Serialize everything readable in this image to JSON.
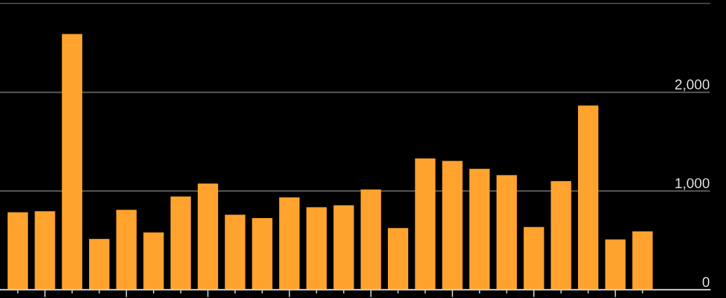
{
  "chart_data": {
    "type": "bar",
    "categories": [
      null,
      null,
      null,
      null,
      null,
      null,
      null,
      null,
      null,
      null,
      null,
      null,
      null,
      null,
      null,
      null,
      null,
      null,
      null,
      null,
      null,
      null,
      null,
      null
    ],
    "values": [
      785,
      795,
      2590,
      515,
      810,
      580,
      945,
      1075,
      760,
      725,
      935,
      835,
      855,
      1015,
      625,
      1330,
      1305,
      1225,
      1160,
      635,
      1100,
      1865,
      510,
      590
    ],
    "color": "#ffa22e",
    "ylim": [
      0,
      2900
    ],
    "yticks": [
      {
        "value": 0,
        "label": "0"
      },
      {
        "value": 1000,
        "label": "1,000"
      },
      {
        "value": 2000,
        "label": "2,000"
      }
    ],
    "grid": "y",
    "tick_labels": "y"
  }
}
